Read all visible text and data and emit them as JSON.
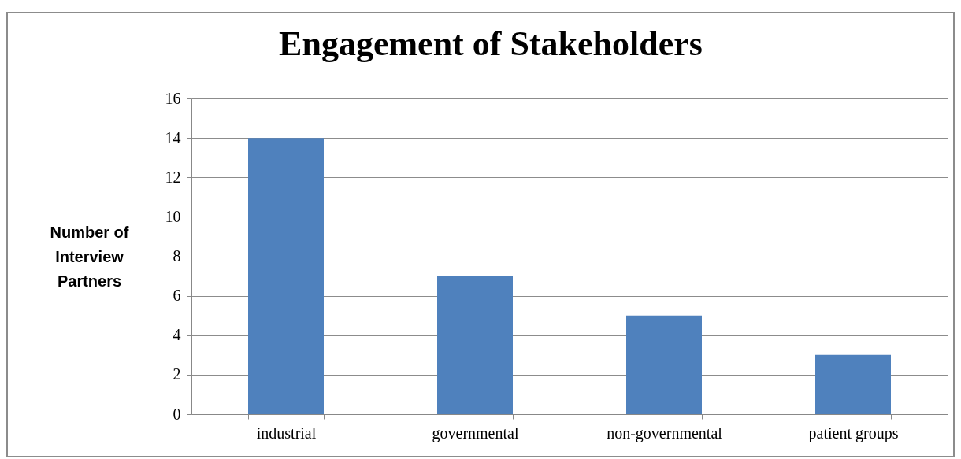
{
  "chart_data": {
    "type": "bar",
    "title": "Engagement of Stakeholders",
    "ylabel": "Number of Interview Partners",
    "categories": [
      "industrial",
      "governmental",
      "non-governmental",
      "patient groups"
    ],
    "values": [
      14,
      7,
      5,
      3
    ],
    "color": "#4f81bd",
    "ylim": [
      0,
      16
    ],
    "yticks": [
      0,
      2,
      4,
      6,
      8,
      10,
      12,
      14,
      16
    ],
    "grid": "y"
  }
}
